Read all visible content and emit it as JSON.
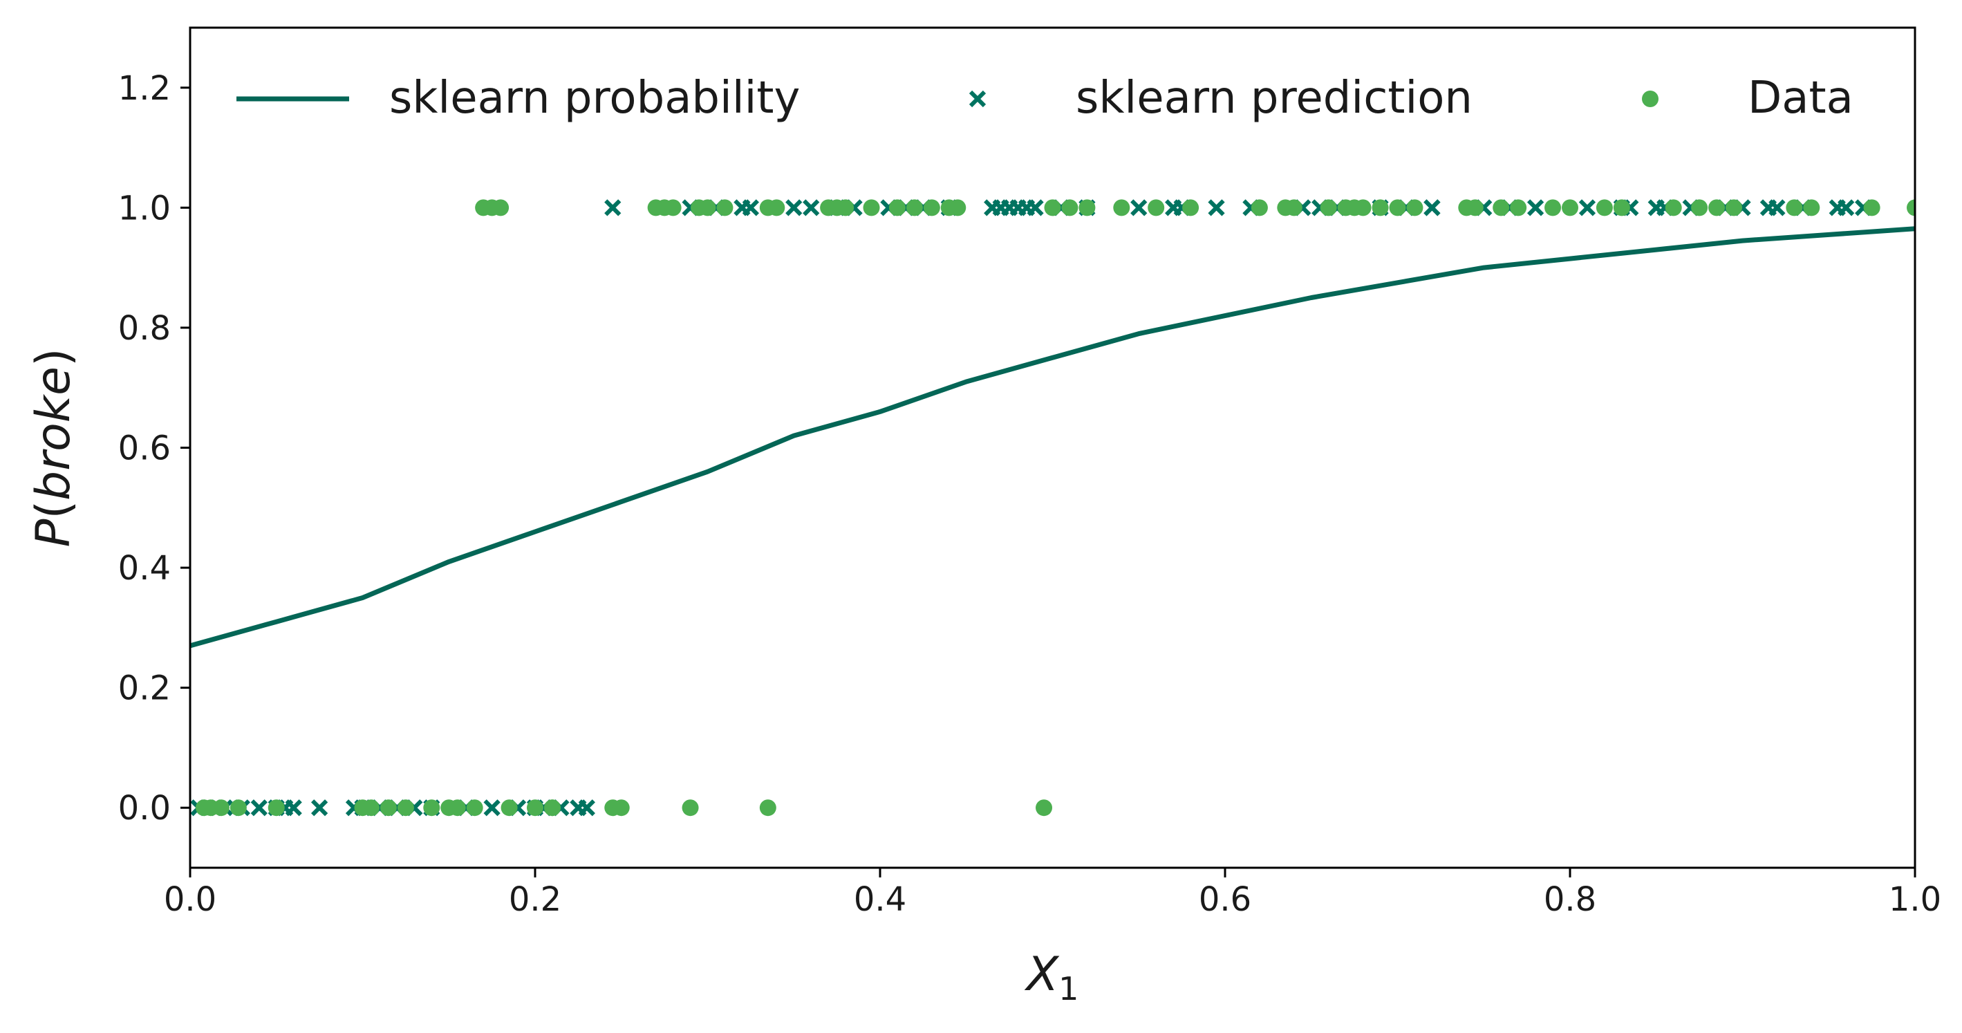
{
  "chart_data": {
    "type": "scatter",
    "title": "",
    "xlabel": "X",
    "xlabel_subscript": "1",
    "ylabel_prefix": "P(",
    "ylabel_italic": "broke",
    "ylabel_suffix": ")",
    "xlim": [
      0.0,
      1.0
    ],
    "ylim": [
      -0.1,
      1.3
    ],
    "xticks": [
      0.0,
      0.2,
      0.4,
      0.6,
      0.8,
      1.0
    ],
    "xtick_labels": [
      "0.0",
      "0.2",
      "0.4",
      "0.6",
      "0.8",
      "1.0"
    ],
    "yticks": [
      0.0,
      0.2,
      0.4,
      0.6,
      0.8,
      1.0,
      1.2
    ],
    "ytick_labels": [
      "0.0",
      "0.2",
      "0.4",
      "0.6",
      "0.8",
      "1.0",
      "1.2"
    ],
    "grid": false,
    "legend_placement": "top",
    "colors": {
      "probability_line": "#046656",
      "prediction_marker": "#007360",
      "data_marker": "#4caf50",
      "axes": "#000000"
    },
    "series": [
      {
        "name": "sklearn probability",
        "kind": "line",
        "x": [
          0.0,
          0.05,
          0.1,
          0.15,
          0.2,
          0.25,
          0.3,
          0.35,
          0.4,
          0.45,
          0.5,
          0.55,
          0.6,
          0.65,
          0.7,
          0.75,
          0.8,
          0.85,
          0.9,
          0.95,
          1.0
        ],
        "y": [
          0.27,
          0.31,
          0.35,
          0.41,
          0.46,
          0.51,
          0.56,
          0.62,
          0.66,
          0.71,
          0.75,
          0.79,
          0.82,
          0.85,
          0.875,
          0.9,
          0.915,
          0.93,
          0.945,
          0.955,
          0.965
        ]
      },
      {
        "name": "sklearn prediction",
        "kind": "x-marker",
        "x0": [
          0.005,
          0.01,
          0.02,
          0.03,
          0.04,
          0.05,
          0.055,
          0.06,
          0.075,
          0.095,
          0.1,
          0.11,
          0.12,
          0.13,
          0.14,
          0.16,
          0.175,
          0.19,
          0.2,
          0.205,
          0.215,
          0.225,
          0.23
        ],
        "x1": [
          0.245,
          0.29,
          0.305,
          0.32,
          0.325,
          0.35,
          0.36,
          0.375,
          0.385,
          0.405,
          0.415,
          0.425,
          0.44,
          0.465,
          0.47,
          0.475,
          0.48,
          0.485,
          0.49,
          0.505,
          0.52,
          0.55,
          0.57,
          0.575,
          0.595,
          0.615,
          0.645,
          0.655,
          0.665,
          0.69,
          0.705,
          0.72,
          0.72,
          0.75,
          0.765,
          0.78,
          0.81,
          0.83,
          0.835,
          0.85,
          0.855,
          0.87,
          0.89,
          0.9,
          0.915,
          0.92,
          0.935,
          0.955,
          0.96,
          0.97
        ]
      },
      {
        "name": "Data",
        "kind": "dot",
        "x0": [
          0.008,
          0.012,
          0.018,
          0.028,
          0.05,
          0.1,
          0.105,
          0.115,
          0.125,
          0.14,
          0.15,
          0.155,
          0.165,
          0.185,
          0.2,
          0.21,
          0.21,
          0.245,
          0.25,
          0.29,
          0.335,
          0.495
        ],
        "x1": [
          0.17,
          0.175,
          0.18,
          0.27,
          0.275,
          0.28,
          0.295,
          0.3,
          0.31,
          0.335,
          0.34,
          0.37,
          0.375,
          0.38,
          0.395,
          0.41,
          0.42,
          0.43,
          0.44,
          0.445,
          0.5,
          0.51,
          0.52,
          0.54,
          0.56,
          0.58,
          0.62,
          0.635,
          0.64,
          0.66,
          0.67,
          0.675,
          0.68,
          0.69,
          0.7,
          0.71,
          0.74,
          0.745,
          0.76,
          0.77,
          0.79,
          0.8,
          0.82,
          0.83,
          0.86,
          0.875,
          0.885,
          0.895,
          0.93,
          0.94,
          0.975,
          1.0
        ]
      }
    ]
  }
}
